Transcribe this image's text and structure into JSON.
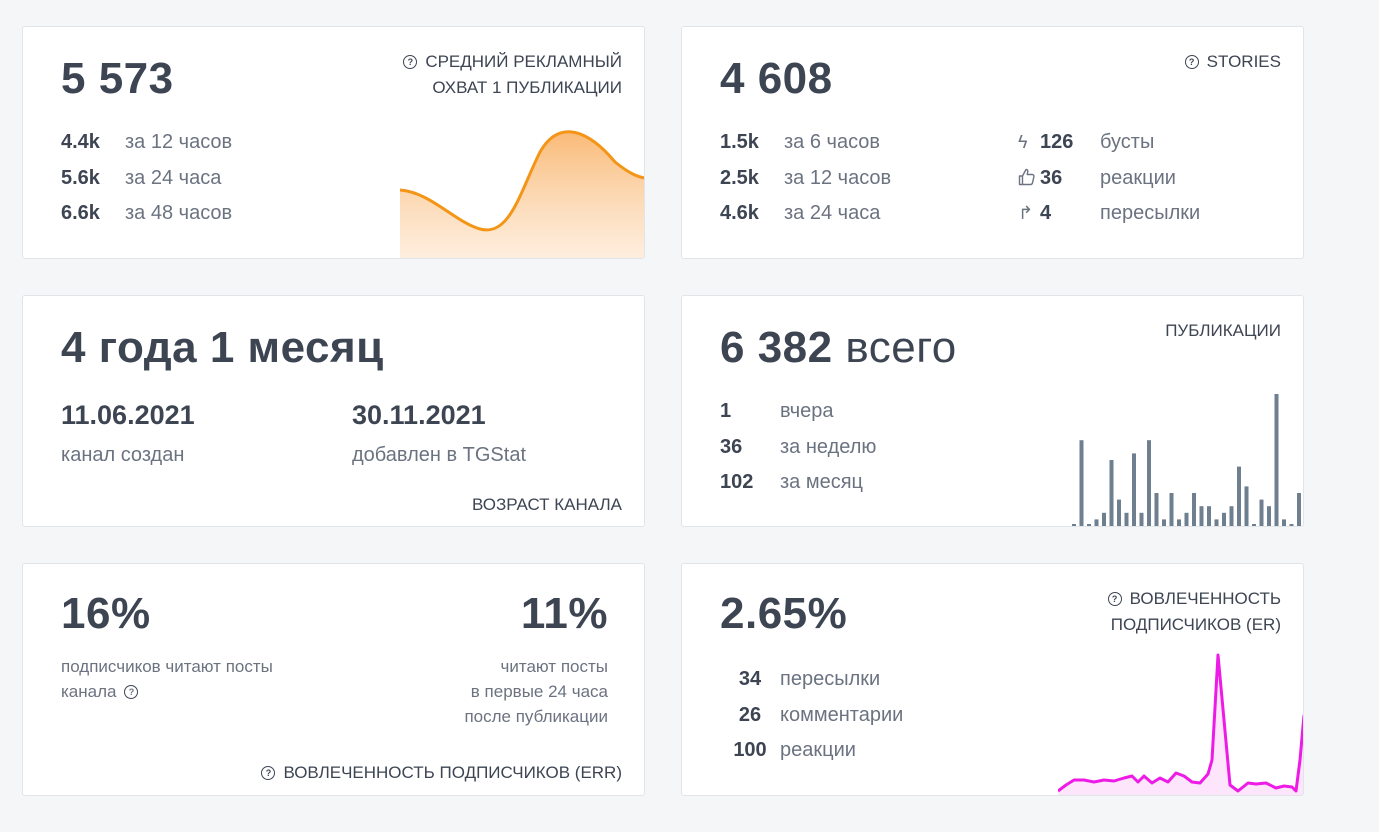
{
  "reach": {
    "value": "5 573",
    "header_line1": "СРЕДНИЙ РЕКЛАМНЫЙ",
    "header_line2": "ОХВАТ 1 ПУБЛИКАЦИИ",
    "rows": [
      {
        "num": "4.4k",
        "label": "за 12 часов"
      },
      {
        "num": "5.6k",
        "label": "за 24 часа"
      },
      {
        "num": "6.6k",
        "label": "за 48 часов"
      }
    ]
  },
  "stories": {
    "value": "4 608",
    "header": "STORIES",
    "rows": [
      {
        "num": "1.5k",
        "label": "за 6 часов"
      },
      {
        "num": "2.5k",
        "label": "за 12 часов"
      },
      {
        "num": "4.6k",
        "label": "за 24 часа"
      }
    ],
    "stats": [
      {
        "icon": "bolt-icon",
        "num": "126",
        "label": "бусты"
      },
      {
        "icon": "thumbs-up-icon",
        "num": "36",
        "label": "реакции"
      },
      {
        "icon": "share-arrow-icon",
        "num": "4",
        "label": "пересылки"
      }
    ]
  },
  "age": {
    "value": "4 года 1 месяц",
    "created_date": "11.06.2021",
    "created_label": "канал создан",
    "added_date": "30.11.2021",
    "added_label": "добавлен в TGStat",
    "footer": "ВОЗРАСТ КАНАЛА"
  },
  "posts": {
    "value": "6 382",
    "value_suffix": "всего",
    "header": "ПУБЛИКАЦИИ",
    "rows": [
      {
        "num": "1",
        "label": "вчера"
      },
      {
        "num": "36",
        "label": "за неделю"
      },
      {
        "num": "102",
        "label": "за месяц"
      }
    ],
    "bar_values": [
      0,
      13,
      0,
      1,
      2,
      10,
      4,
      2,
      11,
      2,
      13,
      5,
      1,
      5,
      1,
      2,
      5,
      3,
      3,
      1,
      2,
      3,
      9,
      6,
      0,
      4,
      3,
      20,
      1,
      0,
      5,
      8,
      14,
      10,
      0,
      7,
      13,
      4,
      1,
      1
    ]
  },
  "err": {
    "left_value": "16%",
    "left_desc_line1": "подписчиков читают посты",
    "left_desc_line2": "канала",
    "right_value": "11%",
    "right_desc_line1": "читают посты",
    "right_desc_line2": "в первые 24 часа",
    "right_desc_line3": "после публикации",
    "footer": "ВОВЛЕЧЕННОСТЬ ПОДПИСЧИКОВ (ERR)"
  },
  "er": {
    "value": "2.65%",
    "header_line1": "ВОВЛЕЧЕННОСТЬ",
    "header_line2": "ПОДПИСЧИКОВ (ER)",
    "rows": [
      {
        "num": "34",
        "label": "пересылки"
      },
      {
        "num": "26",
        "label": "комментарии"
      },
      {
        "num": "100",
        "label": "реакции"
      }
    ]
  },
  "colors": {
    "reach_line": "#f39617",
    "posts_bar": "#6e7f8f",
    "er_line": "#ee1be6"
  }
}
